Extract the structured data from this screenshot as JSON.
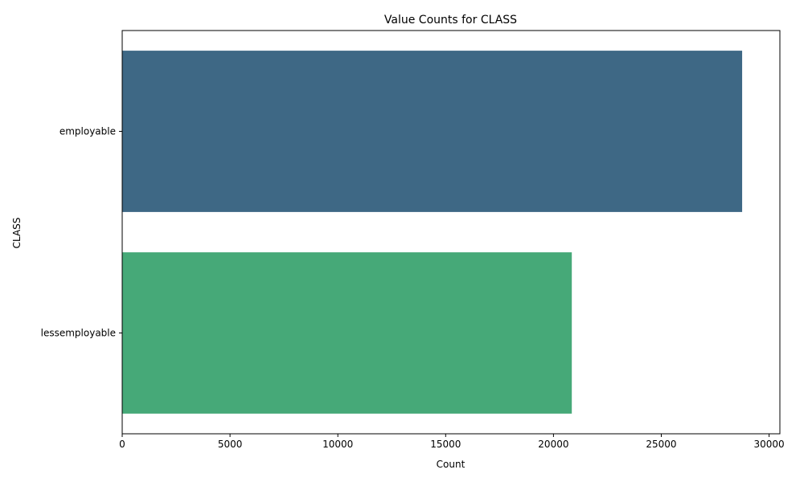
{
  "chart_data": {
    "type": "bar",
    "orientation": "horizontal",
    "title": "Value Counts for CLASS",
    "xlabel": "Count",
    "ylabel": "CLASS",
    "categories": [
      "employable",
      "lessemployable"
    ],
    "values": [
      28750,
      20850
    ],
    "colors": [
      "#3e6885",
      "#46a978"
    ],
    "xlim": [
      0,
      30500
    ],
    "xticks": [
      0,
      5000,
      10000,
      15000,
      20000,
      25000,
      30000
    ],
    "grid": false,
    "legend": "none"
  }
}
